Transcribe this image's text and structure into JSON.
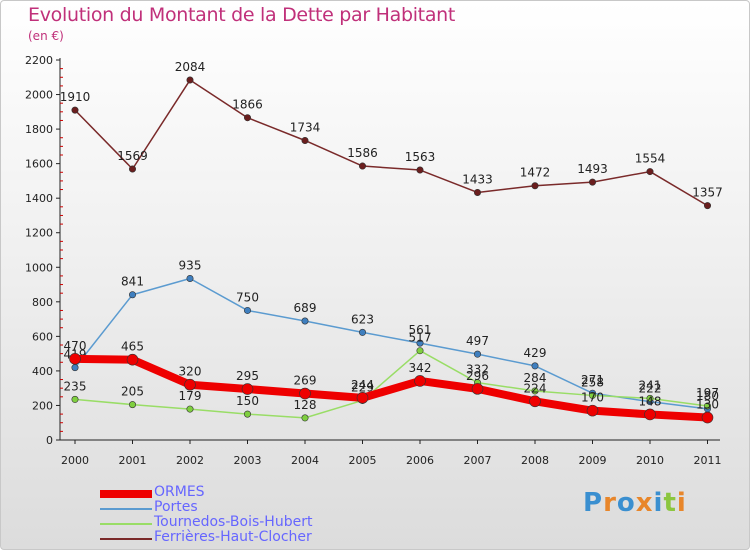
{
  "header": {
    "title": "Evolution du Montant de la Dette par Habitant",
    "unit": "(en €)"
  },
  "logo": {
    "text": "Proxiti",
    "colors": [
      "#3a8fd0",
      "#e8862a",
      "#3a8fd0",
      "#e8862a",
      "#3a8fd0",
      "#8cc63f",
      "#e8862a"
    ]
  },
  "colors": {
    "title": "#c0307a",
    "legend_text": "#6666ff",
    "axis": "#222222"
  },
  "chart_data": {
    "type": "line",
    "title": "Evolution du Montant de la Dette par Habitant",
    "subtitle": "(en €)",
    "xlabel": "",
    "ylabel": "",
    "x": [
      "2000",
      "2001",
      "2002",
      "2003",
      "2004",
      "2005",
      "2006",
      "2007",
      "2008",
      "2009",
      "2010",
      "2011"
    ],
    "ylim": [
      0,
      2200
    ],
    "yticks": [
      0,
      200,
      400,
      600,
      800,
      1000,
      1200,
      1400,
      1600,
      1800,
      2000,
      2200
    ],
    "grid": false,
    "legend_position": "bottom-left",
    "series": [
      {
        "name": "Ferrières-Haut-Clocher",
        "color": "#7a2a2a",
        "marker": "#6b1e1e",
        "width": 1.5,
        "values": [
          1910,
          1569,
          2084,
          1866,
          1734,
          1586,
          1563,
          1433,
          1472,
          1493,
          1554,
          1357
        ]
      },
      {
        "name": "Portes",
        "color": "#5b9bd0",
        "marker": "#3f7fbf",
        "width": 1.5,
        "values": [
          419,
          841,
          935,
          750,
          689,
          623,
          561,
          497,
          429,
          271,
          222,
          180
        ]
      },
      {
        "name": "Tournedos-Bois-Hubert",
        "color": "#99dd66",
        "marker": "#7fcf3f",
        "width": 1.5,
        "values": [
          235,
          205,
          179,
          150,
          128,
          229,
          517,
          332,
          284,
          258,
          241,
          197
        ]
      },
      {
        "name": "ORMES",
        "color": "#ee0000",
        "marker": "#ee0000",
        "width": 8,
        "values": [
          470,
          465,
          320,
          295,
          269,
          244,
          342,
          296,
          224,
          170,
          148,
          130
        ]
      }
    ]
  },
  "legend": [
    {
      "label": "ORMES",
      "color": "#ee0000",
      "thickness": 8
    },
    {
      "label": "Portes",
      "color": "#5b9bd0",
      "thickness": 2
    },
    {
      "label": "Tournedos-Bois-Hubert",
      "color": "#99dd66",
      "thickness": 2
    },
    {
      "label": "Ferrières-Haut-Clocher",
      "color": "#7a2a2a",
      "thickness": 2
    }
  ]
}
